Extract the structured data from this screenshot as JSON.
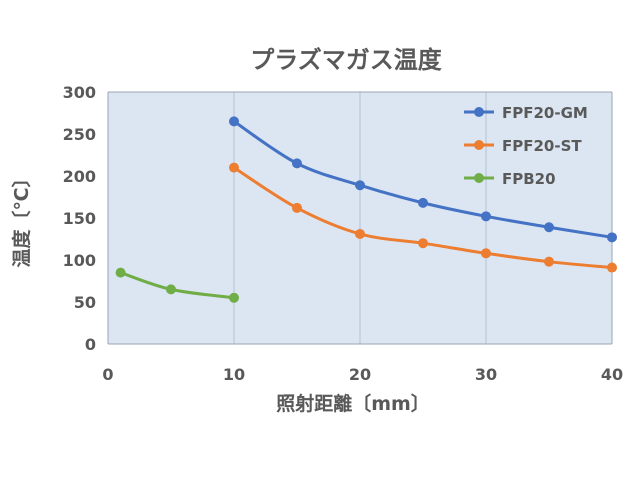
{
  "chart_data": {
    "type": "line",
    "title": "プラズマガス温度",
    "xlabel": "照射距離〔mm〕",
    "ylabel": "温度〔℃〕",
    "xlim": [
      0,
      40
    ],
    "ylim": [
      0,
      300
    ],
    "xticks": [
      0,
      10,
      20,
      30,
      40
    ],
    "yticks": [
      0,
      50,
      100,
      150,
      200,
      250,
      300
    ],
    "grid": true,
    "plot_background": "#dce6f2",
    "legend_position": "top-right",
    "series": [
      {
        "name": "FPF20-GM",
        "color": "#4472c4",
        "x": [
          10,
          15,
          20,
          25,
          30,
          35,
          40
        ],
        "y": [
          265,
          215,
          189,
          168,
          152,
          139,
          127
        ]
      },
      {
        "name": "FPF20-ST",
        "color": "#ed7d31",
        "x": [
          10,
          15,
          20,
          25,
          30,
          35,
          40
        ],
        "y": [
          210,
          162,
          131,
          120,
          108,
          98,
          91
        ]
      },
      {
        "name": "FPB20",
        "color": "#70ad47",
        "x": [
          1,
          5,
          10
        ],
        "y": [
          85,
          65,
          55
        ]
      }
    ]
  }
}
